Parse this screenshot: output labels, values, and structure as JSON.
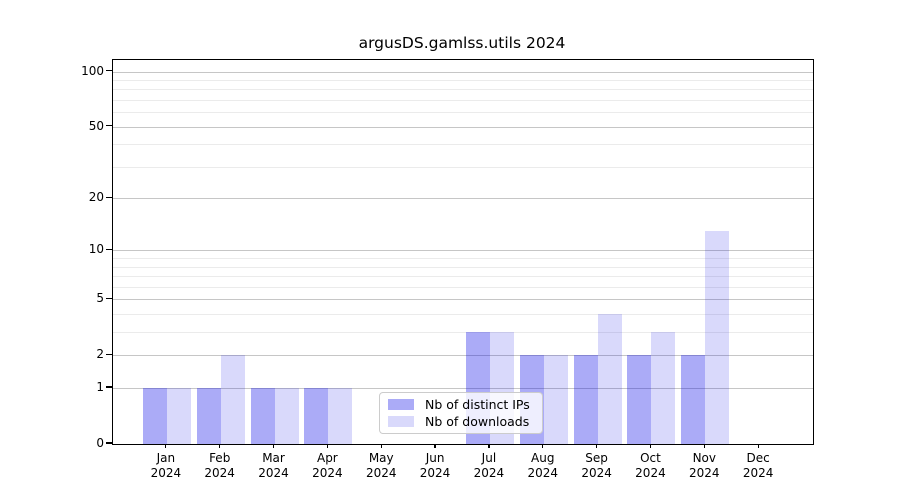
{
  "title": "argusDS.gamlss.utils 2024",
  "chart_data": {
    "type": "bar",
    "title": "argusDS.gamlss.utils 2024",
    "categories": [
      "Jan\n2024",
      "Feb\n2024",
      "Mar\n2024",
      "Apr\n2024",
      "May\n2024",
      "Jun\n2024",
      "Jul\n2024",
      "Aug\n2024",
      "Sep\n2024",
      "Oct\n2024",
      "Nov\n2024",
      "Dec\n2024"
    ],
    "series": [
      {
        "name": "Nb of distinct IPs",
        "color": "rgba(0,0,230,0.33)",
        "color_hex": "#aaaaf5",
        "values": [
          1,
          1,
          1,
          1,
          0,
          0,
          3,
          2,
          2,
          2,
          2,
          0
        ]
      },
      {
        "name": "Nb of downloads",
        "color": "rgba(0,0,230,0.15)",
        "color_hex": "#d9d9f9",
        "values": [
          1,
          2,
          1,
          1,
          0,
          0,
          3,
          2,
          4,
          3,
          13,
          0
        ]
      }
    ],
    "xlabel": "",
    "ylabel": "",
    "yscale": "log1p",
    "ylim": [
      0,
      115
    ],
    "y_major_ticks": [
      0,
      1,
      2,
      5,
      10,
      20,
      50,
      100
    ],
    "y_minor_ticks": [
      3,
      4,
      6,
      7,
      8,
      9,
      30,
      40,
      60,
      70,
      80,
      90
    ],
    "grid": "horizontal",
    "legend_position": "lower center, inside plot"
  },
  "colors": {
    "background": "#ffffff",
    "axis": "#000000",
    "grid_major": "#c6c6c6",
    "grid_minor": "#ebebeb",
    "legend_border": "#cccccc"
  }
}
